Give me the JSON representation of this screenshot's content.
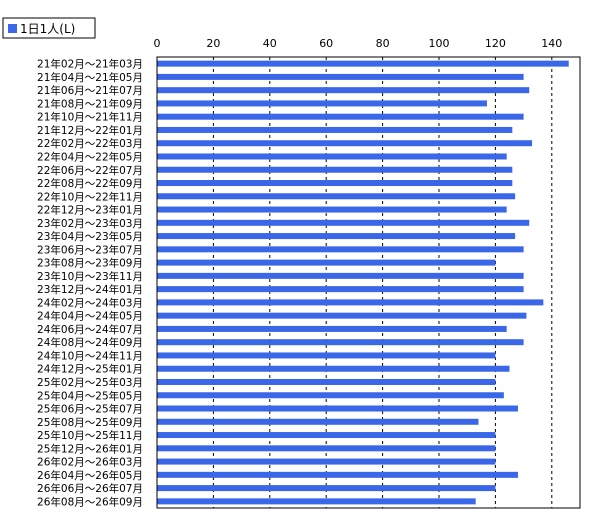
{
  "chart_data": {
    "type": "bar",
    "orientation": "horizontal",
    "legend": {
      "label": "1日1人(L)",
      "placement": "top-left",
      "color": "#3a66e8"
    },
    "xlim": [
      0,
      150
    ],
    "x_ticks": [
      0,
      20,
      40,
      60,
      80,
      100,
      120,
      140
    ],
    "grid": {
      "vertical": true,
      "style": "dashed"
    },
    "series": [
      {
        "name": "1日1人(L)",
        "color": "#3a66e8",
        "values": [
          146,
          130,
          132,
          117,
          130,
          126,
          133,
          124,
          126,
          126,
          127,
          124,
          132,
          127,
          130,
          120,
          130,
          130,
          137,
          131,
          124,
          130,
          120,
          125,
          120,
          123,
          128,
          114,
          120,
          120,
          120,
          128,
          120,
          113
        ]
      }
    ],
    "categories": [
      "21年02月～21年03月",
      "21年04月～21年05月",
      "21年06月～21年07月",
      "21年08月～21年09月",
      "21年10月～21年11月",
      "21年12月～22年01月",
      "22年02月～22年03月",
      "22年04月～22年05月",
      "22年06月～22年07月",
      "22年08月～22年09月",
      "22年10月～22年11月",
      "22年12月～23年01月",
      "23年02月～23年03月",
      "23年04月～23年05月",
      "23年06月～23年07月",
      "23年08月～23年09月",
      "23年10月～23年11月",
      "23年12月～24年01月",
      "24年02月～24年03月",
      "24年04月～24年05月",
      "24年06月～24年07月",
      "24年08月～24年09月",
      "24年10月～24年11月",
      "24年12月～25年01月",
      "25年02月～25年03月",
      "25年04月～25年05月",
      "25年06月～25年07月",
      "25年08月～25年09月",
      "25年10月～25年11月",
      "25年12月～26年01月",
      "26年02月～26年03月",
      "26年04月～26年05月",
      "26年06月～26年07月",
      "26年08月～26年09月"
    ]
  }
}
